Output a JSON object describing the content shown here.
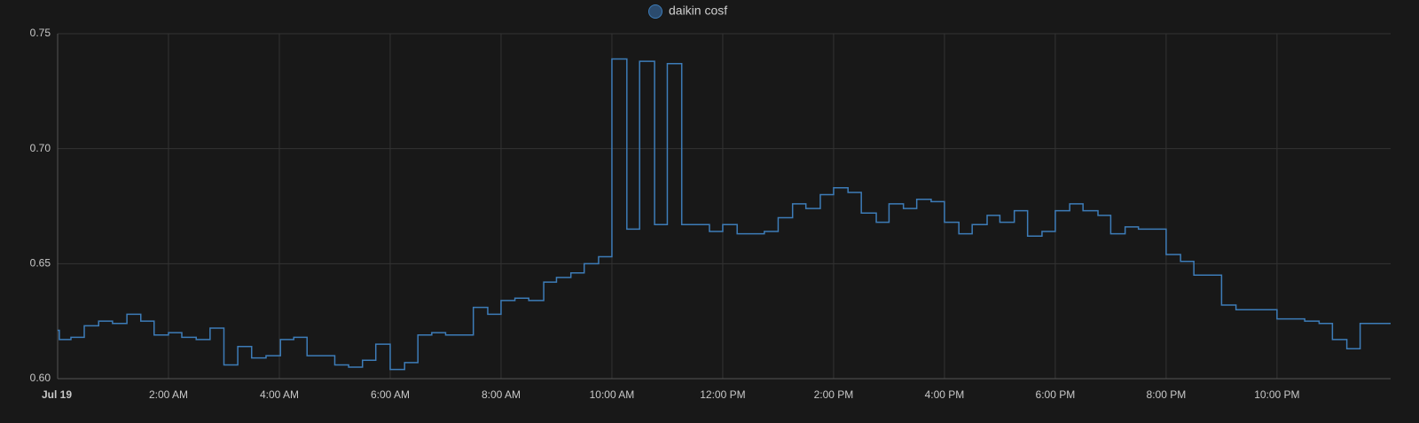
{
  "chart_data": {
    "type": "line",
    "step": "after",
    "legend_position": "top",
    "grid": true,
    "series": [
      {
        "name": "daikin cosf",
        "color": "#3d7cb8",
        "x": [
          0,
          0.03,
          0.24,
          0.48,
          0.74,
          0.99,
          1.25,
          1.5,
          1.74,
          2,
          2.24,
          2.5,
          2.75,
          3,
          3.25,
          3.5,
          3.76,
          4.02,
          4.26,
          4.5,
          5,
          5.25,
          5.5,
          5.74,
          6,
          6.26,
          6.5,
          6.75,
          7,
          7.25,
          7.5,
          7.76,
          8,
          8.25,
          8.5,
          8.77,
          9,
          9.26,
          9.5,
          9.76,
          10,
          10.27,
          10.5,
          10.77,
          11,
          11.26,
          11.76,
          12,
          12.26,
          12.75,
          13,
          13.26,
          13.5,
          13.76,
          14,
          14.26,
          14.5,
          14.77,
          15,
          15.26,
          15.5,
          15.76,
          16,
          16.26,
          16.5,
          16.77,
          17,
          17.26,
          17.5,
          17.76,
          18,
          18.26,
          18.5,
          18.77,
          19,
          19.26,
          19.5,
          20,
          20.26,
          20.5,
          21,
          21.26,
          21.5,
          21.76,
          22,
          22.26,
          22.5,
          22.76,
          23,
          23.26,
          23.5
        ],
        "values": [
          0.621,
          0.617,
          0.618,
          0.623,
          0.625,
          0.624,
          0.628,
          0.625,
          0.619,
          0.62,
          0.618,
          0.617,
          0.622,
          0.606,
          0.614,
          0.609,
          0.61,
          0.617,
          0.618,
          0.61,
          0.606,
          0.605,
          0.608,
          0.615,
          0.604,
          0.607,
          0.619,
          0.62,
          0.619,
          0.619,
          0.631,
          0.628,
          0.634,
          0.635,
          0.634,
          0.642,
          0.644,
          0.646,
          0.65,
          0.653,
          0.739,
          0.665,
          0.738,
          0.667,
          0.737,
          0.667,
          0.664,
          0.667,
          0.663,
          0.664,
          0.67,
          0.676,
          0.674,
          0.68,
          0.683,
          0.681,
          0.672,
          0.668,
          0.676,
          0.674,
          0.678,
          0.677,
          0.668,
          0.663,
          0.667,
          0.671,
          0.668,
          0.673,
          0.662,
          0.664,
          0.673,
          0.676,
          0.673,
          0.671,
          0.663,
          0.666,
          0.665,
          0.654,
          0.651,
          0.645,
          0.632,
          0.63,
          0.63,
          0.63,
          0.626,
          0.626,
          0.625,
          0.624,
          0.617,
          0.613,
          0.624
        ]
      }
    ],
    "xlim": [
      0,
      24.05
    ],
    "xticks": [
      {
        "value": 0,
        "label": "Jul 19"
      },
      {
        "value": 2,
        "label": "2:00 AM"
      },
      {
        "value": 4,
        "label": "4:00 AM"
      },
      {
        "value": 6,
        "label": "6:00 AM"
      },
      {
        "value": 8,
        "label": "8:00 AM"
      },
      {
        "value": 10,
        "label": "10:00 AM"
      },
      {
        "value": 12,
        "label": "12:00 PM"
      },
      {
        "value": 14,
        "label": "2:00 PM"
      },
      {
        "value": 16,
        "label": "4:00 PM"
      },
      {
        "value": 18,
        "label": "6:00 PM"
      },
      {
        "value": 20,
        "label": "8:00 PM"
      },
      {
        "value": 22,
        "label": "10:00 PM"
      }
    ],
    "ylim": [
      0.6,
      0.75
    ],
    "yticks": [
      {
        "value": 0.6,
        "label": "0.60"
      },
      {
        "value": 0.65,
        "label": "0.65"
      },
      {
        "value": 0.7,
        "label": "0.70"
      },
      {
        "value": 0.75,
        "label": "0.75"
      }
    ]
  }
}
